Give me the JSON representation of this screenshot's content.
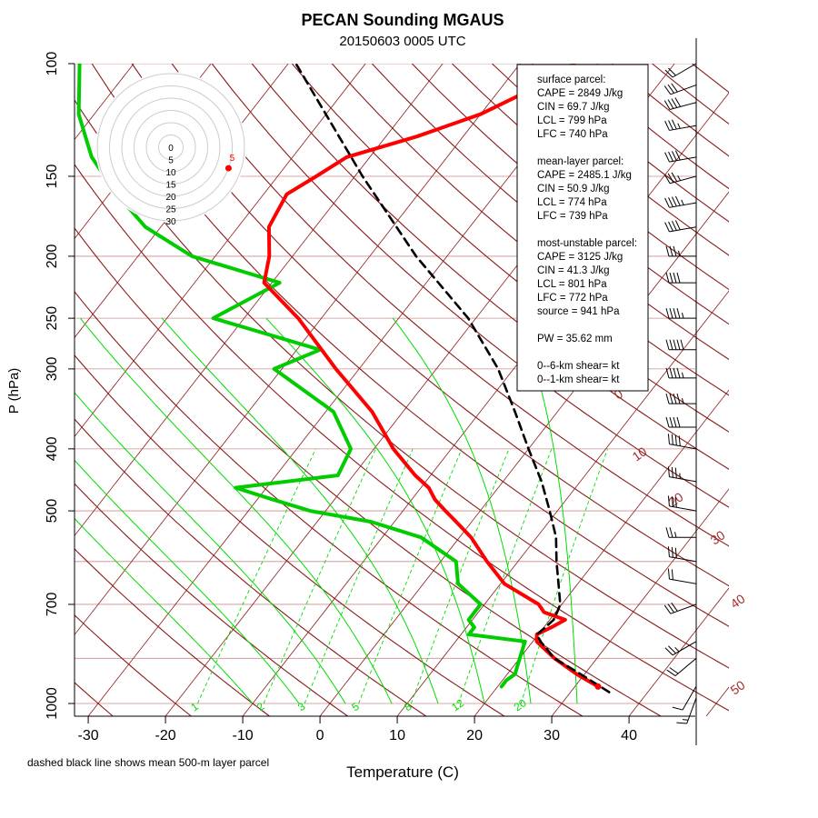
{
  "chart_data": {
    "type": "skew-t",
    "title": "PECAN Sounding MGAUS",
    "subtitle": "20150603 0005 UTC",
    "xlabel": "Temperature (C)",
    "ylabel": "P (hPa)",
    "footnote": "dashed black line shows mean 500-m layer parcel",
    "xlim": [
      -35,
      47
    ],
    "ylim": [
      1050,
      100
    ],
    "x_ticks": [
      "-30",
      "-20",
      "-10",
      "0",
      "10",
      "20",
      "30",
      "40"
    ],
    "x_tick_values": [
      -30,
      -20,
      -10,
      0,
      10,
      20,
      30,
      40
    ],
    "p_ticks": [
      "100",
      "150",
      "200",
      "250",
      "300",
      "400",
      "500",
      "700",
      "1000"
    ],
    "p_tick_values": [
      100,
      150,
      200,
      250,
      300,
      400,
      500,
      700,
      1000
    ],
    "isobar_values": [
      100,
      150,
      200,
      250,
      300,
      400,
      500,
      600,
      700,
      850,
      1000
    ],
    "dry_adiabat_labels": [
      "0",
      "10",
      "20",
      "30",
      "40",
      "50"
    ],
    "mixing_ratio_labels": [
      "1",
      "2",
      "3",
      "5",
      "8",
      "12",
      "20"
    ],
    "temperature": {
      "name": "Temperature",
      "color": "#ff0000",
      "p": [
        941,
        900,
        850,
        800,
        780,
        760,
        740,
        720,
        700,
        650,
        600,
        550,
        520,
        500,
        480,
        460,
        440,
        400,
        350,
        300,
        250,
        220,
        200,
        180,
        160,
        150,
        140,
        130,
        120,
        110,
        100
      ],
      "t": [
        33,
        29,
        24.5,
        20.5,
        19.8,
        21,
        22,
        18.5,
        17,
        10.5,
        6,
        1.5,
        -2,
        -4.5,
        -7,
        -9,
        -12,
        -17.5,
        -24,
        -33,
        -43,
        -51,
        -53,
        -56,
        -57,
        -55,
        -53,
        -46,
        -40,
        -36,
        -33
      ]
    },
    "dewpoint": {
      "name": "Dewpoint",
      "color": "#00cc00",
      "p": [
        941,
        920,
        900,
        850,
        800,
        780,
        760,
        740,
        700,
        650,
        600,
        550,
        520,
        500,
        480,
        460,
        440,
        400,
        350,
        300,
        280,
        250,
        220,
        200,
        180,
        160,
        140,
        120,
        100
      ],
      "td": [
        20.5,
        20.5,
        21,
        20,
        19,
        11,
        11,
        9.5,
        9.5,
        4.5,
        2,
        -5,
        -13,
        -22,
        -28,
        -34,
        -22,
        -23,
        -29,
        -41,
        -37,
        -54,
        -49,
        -63,
        -72,
        -79,
        -86,
        -92,
        -97
      ]
    },
    "parcel": {
      "name": "mean 500-m layer parcel",
      "color": "#000000",
      "p": [
        960,
        900,
        850,
        800,
        780,
        760,
        740,
        720,
        700,
        650,
        600,
        550,
        500,
        450,
        400,
        350,
        300,
        250,
        200,
        150,
        100
      ],
      "t": [
        35,
        29.5,
        24.5,
        21,
        19.8,
        20.2,
        20.5,
        20.2,
        19.8,
        17.5,
        15,
        12.5,
        9,
        5,
        0,
        -5.5,
        -12,
        -21,
        -34,
        -49,
        -69
      ]
    },
    "wind_barbs": [
      {
        "p": 980,
        "speed": 15,
        "dir": 200
      },
      {
        "p": 940,
        "speed": 10,
        "dir": 210
      },
      {
        "p": 850,
        "speed": 20,
        "dir": 230
      },
      {
        "p": 800,
        "speed": 25,
        "dir": 240
      },
      {
        "p": 700,
        "speed": 30,
        "dir": 250
      },
      {
        "p": 650,
        "speed": 20,
        "dir": 280
      },
      {
        "p": 600,
        "speed": 30,
        "dir": 280
      },
      {
        "p": 550,
        "speed": 25,
        "dir": 270
      },
      {
        "p": 500,
        "speed": 30,
        "dir": 280
      },
      {
        "p": 450,
        "speed": 35,
        "dir": 280
      },
      {
        "p": 400,
        "speed": 40,
        "dir": 280
      },
      {
        "p": 370,
        "speed": 40,
        "dir": 270
      },
      {
        "p": 340,
        "speed": 45,
        "dir": 270
      },
      {
        "p": 310,
        "speed": 45,
        "dir": 270
      },
      {
        "p": 280,
        "speed": 50,
        "dir": 270
      },
      {
        "p": 250,
        "speed": 45,
        "dir": 270
      },
      {
        "p": 220,
        "speed": 40,
        "dir": 270
      },
      {
        "p": 200,
        "speed": 35,
        "dir": 270
      },
      {
        "p": 180,
        "speed": 40,
        "dir": 260
      },
      {
        "p": 165,
        "speed": 45,
        "dir": 260
      },
      {
        "p": 150,
        "speed": 35,
        "dir": 255
      },
      {
        "p": 140,
        "speed": 40,
        "dir": 260
      },
      {
        "p": 125,
        "speed": 35,
        "dir": 260
      },
      {
        "p": 115,
        "speed": 40,
        "dir": 255
      },
      {
        "p": 108,
        "speed": 30,
        "dir": 250
      },
      {
        "p": 100,
        "speed": 20,
        "dir": 240
      }
    ],
    "hodograph": {
      "ring_labels": [
        "0",
        "5",
        "10",
        "15",
        "20",
        "25",
        "30"
      ],
      "point_label": "5",
      "point_speed": 5,
      "point_angle_deg": 20
    },
    "info_box": {
      "lines": [
        "surface parcel:",
        "CAPE = 2849 J/kg",
        "CIN = 69.7 J/kg",
        "LCL = 799 hPa",
        "LFC = 740 hPa",
        "",
        "mean-layer parcel:",
        "CAPE = 2485.1 J/kg",
        "CIN = 50.9 J/kg",
        "LCL = 774 hPa",
        "LFC = 739 hPa",
        "",
        "most-unstable parcel:",
        "CAPE = 3125 J/kg",
        "CIN = 41.3 J/kg",
        "LCL = 801 hPa",
        "LFC = 772 hPa",
        "source = 941 hPa",
        "",
        "PW =  35.62 mm",
        "",
        "0--6-km shear=  kt",
        "0--1-km shear=  kt"
      ]
    },
    "colors": {
      "isotherm": "#8b1a1a",
      "isobar": "#cd8c8c",
      "moist_adiabat": "#00dd00",
      "mixing_ratio": "#00dd00",
      "adiabat_label": "#a52a2a"
    }
  }
}
